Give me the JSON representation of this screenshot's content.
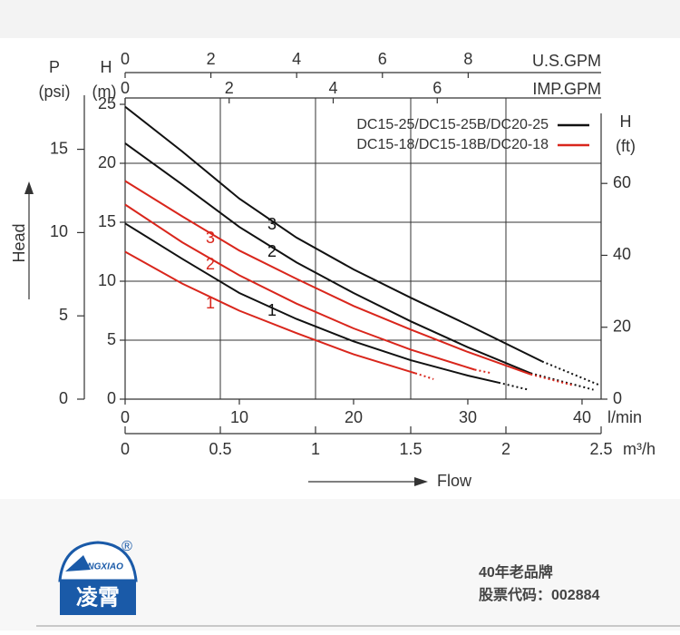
{
  "chart_data": {
    "type": "line",
    "x_label": "l/min",
    "xlim": [
      0,
      41.67
    ],
    "xticks": [
      0,
      10,
      20,
      30,
      40
    ],
    "y_label": "H",
    "y_unit": "(m)",
    "ylim": [
      0,
      25
    ],
    "yticks": [
      0,
      5,
      10,
      15,
      20,
      25
    ],
    "grid": true,
    "psi_axis": {
      "label": "P",
      "unit": "(psi)",
      "lim": [
        0,
        17.7
      ],
      "ticks": [
        0,
        5,
        10,
        15
      ]
    },
    "ft_axis": {
      "label": "H",
      "unit": "(ft)",
      "lim": [
        0,
        82
      ],
      "ticks": [
        0,
        20,
        40,
        60
      ]
    },
    "m3h_axis": {
      "label": "m³/h",
      "lim": [
        0,
        2.5
      ],
      "ticks": [
        0,
        0.5,
        1,
        1.5,
        2,
        2.5
      ]
    },
    "usgpm_axis": {
      "label": "U.S.GPM",
      "lim": [
        0,
        11.1
      ],
      "ticks": [
        0,
        2,
        4,
        6,
        8
      ]
    },
    "impgpm_axis": {
      "label": "IMP.GPM",
      "lim": [
        0,
        9.15
      ],
      "ticks": [
        0,
        2,
        4,
        6
      ]
    },
    "head_label": "Head",
    "flow_label": "Flow",
    "legend": [
      {
        "label": "DC15-25/DC15-25B/DC20-25",
        "color": "#111111"
      },
      {
        "label": "DC15-18/DC15-18B/DC20-18",
        "color": "#d9261c"
      }
    ],
    "series": [
      {
        "name": "1",
        "color": "#111111",
        "x": [
          0,
          5,
          10,
          15,
          20,
          25,
          30,
          32.7
        ],
        "values": [
          14.9,
          11.9,
          9.0,
          6.8,
          4.9,
          3.3,
          2.0,
          1.4
        ],
        "extension": {
          "x": [
            35.3
          ],
          "values": [
            0.8
          ]
        }
      },
      {
        "name": "2",
        "color": "#111111",
        "x": [
          0,
          5,
          10,
          15,
          20,
          25,
          30,
          35.5
        ],
        "values": [
          21.7,
          18.2,
          14.6,
          11.6,
          9.0,
          6.6,
          4.4,
          2.2
        ],
        "extension": {
          "x": [
            41
          ],
          "values": [
            0.8
          ]
        }
      },
      {
        "name": "3",
        "color": "#111111",
        "x": [
          0,
          5,
          10,
          15,
          20,
          25,
          30,
          36.5
        ],
        "values": [
          24.8,
          21.0,
          17.0,
          13.7,
          11.0,
          8.6,
          6.3,
          3.2
        ],
        "extension": {
          "x": [
            41.5
          ],
          "values": [
            1.2
          ]
        }
      },
      {
        "name": "1",
        "color": "#d9261c",
        "x": [
          0,
          5,
          10,
          15,
          20,
          25.4
        ],
        "values": [
          12.5,
          9.8,
          7.5,
          5.6,
          3.8,
          2.2
        ],
        "extension": {
          "x": [
            27
          ],
          "values": [
            1.7
          ]
        }
      },
      {
        "name": "2",
        "color": "#d9261c",
        "x": [
          0,
          5,
          10,
          15,
          20,
          25,
          30.6
        ],
        "values": [
          16.5,
          13.3,
          10.5,
          8.1,
          6.0,
          4.2,
          2.5
        ],
        "extension": {
          "x": [
            32.1
          ],
          "values": [
            2.2
          ]
        }
      },
      {
        "name": "3",
        "color": "#d9261c",
        "x": [
          0,
          5,
          10,
          15,
          20,
          25,
          30,
          35.5
        ],
        "values": [
          18.5,
          15.5,
          12.6,
          10.2,
          7.9,
          5.9,
          4.0,
          2.1
        ],
        "extension": {
          "x": [
            39.1
          ],
          "values": [
            1.2
          ]
        }
      }
    ]
  },
  "footer": {
    "logo_latin": "JINGXIAO",
    "logo_mark": "®",
    "logo_text": "凌霄",
    "slogan": "40年老品牌",
    "stock": "股票代码：002884"
  }
}
